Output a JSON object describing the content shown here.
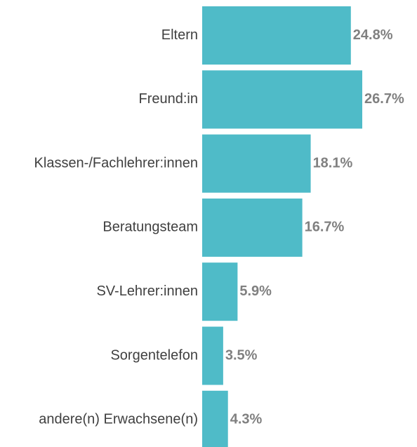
{
  "chart_data": {
    "type": "barh",
    "categories": [
      "Eltern",
      "Freund:in",
      "Klassen-/Fachlehrer:innen",
      "Beratungsteam",
      "SV-Lehrer:innen",
      "Sorgentelefon",
      "andere(n) Erwachsene(n)"
    ],
    "values": [
      24.8,
      26.7,
      18.1,
      16.7,
      5.9,
      3.5,
      4.3
    ],
    "value_labels": [
      "24.8%",
      "26.7%",
      "18.1%",
      "16.7%",
      "5.9%",
      "3.5%",
      "4.3%"
    ],
    "color": "#4fbbc8"
  }
}
